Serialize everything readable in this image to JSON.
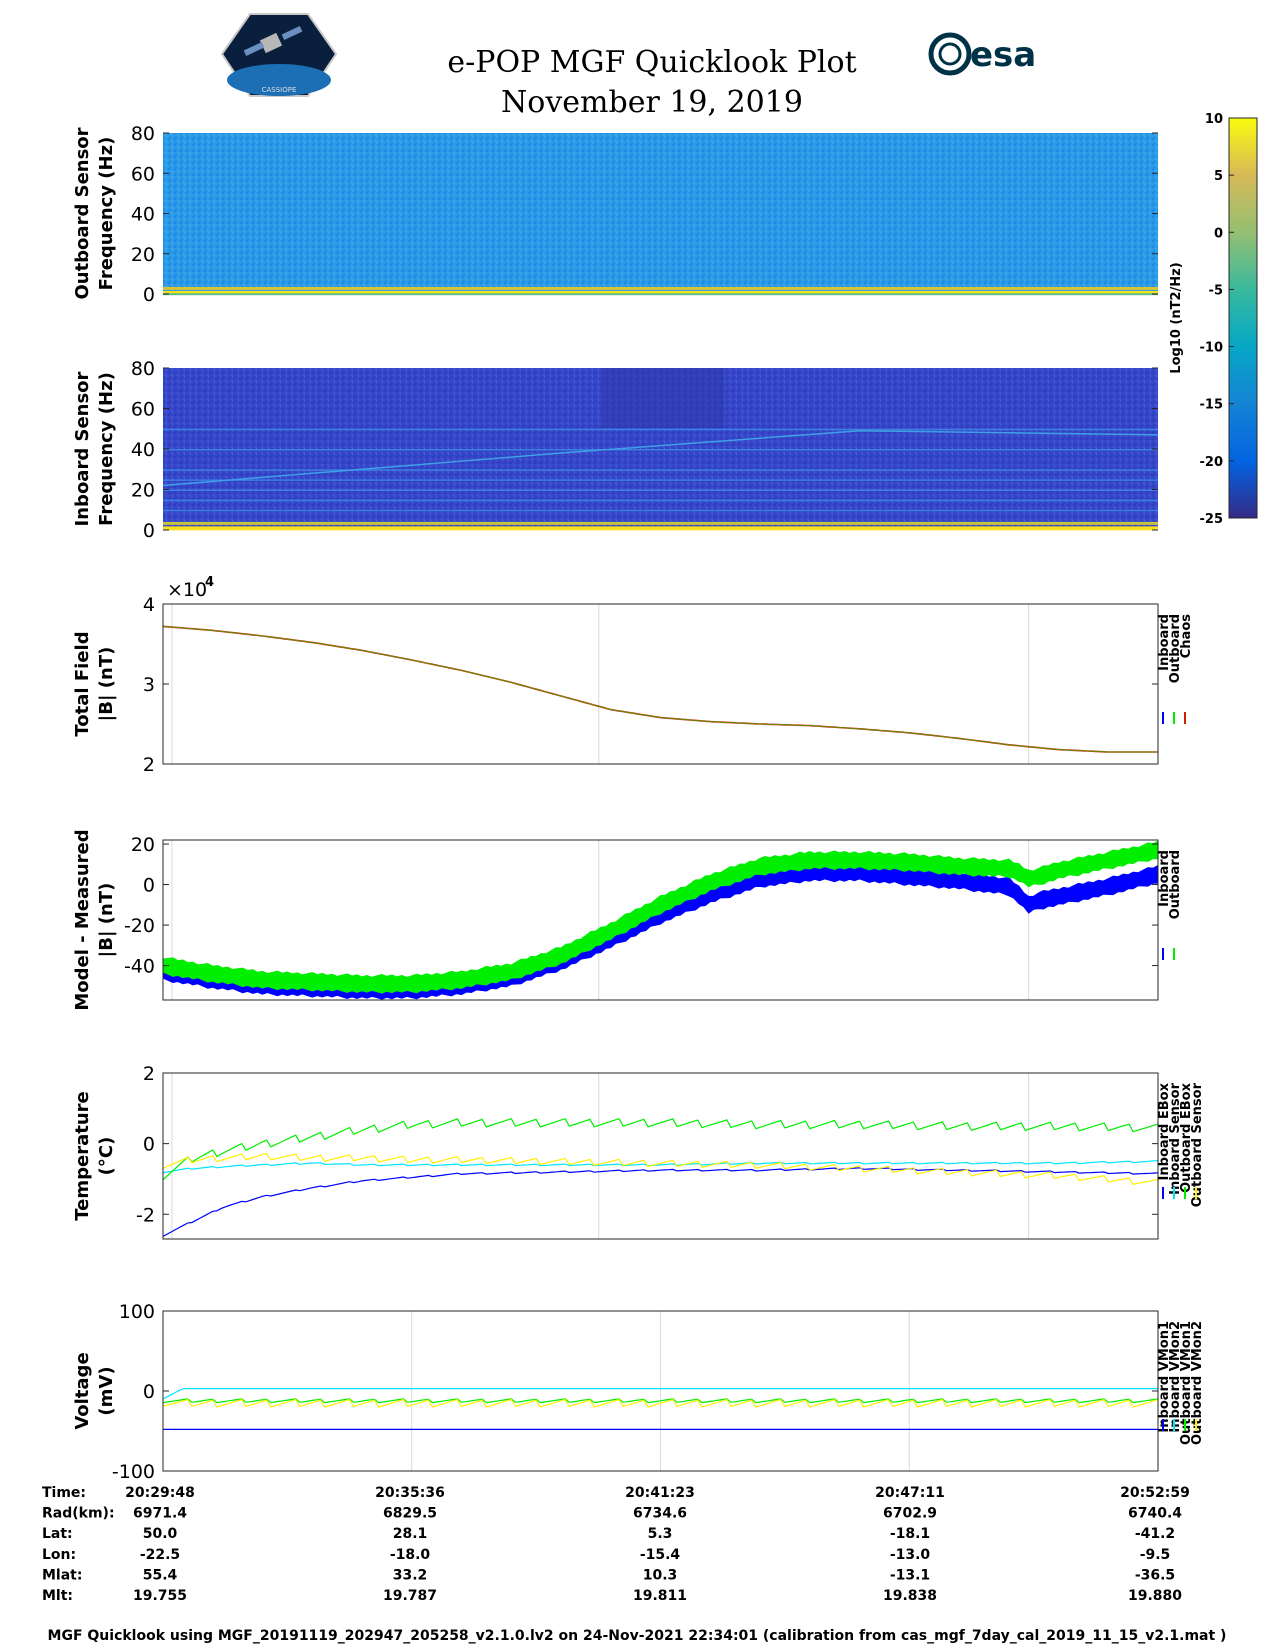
{
  "header": {
    "title": "e-POP MGF Quicklook Plot",
    "date": "November 19, 2019",
    "logo_left_text": "CASSIOPE",
    "logo_right_text": "esa"
  },
  "colors": {
    "inboard": "#0000ff",
    "outboard": "#00ee00",
    "chaos": "#cc2200",
    "cyan": "#00e5ff",
    "yellow": "#ffee00"
  },
  "chart_data": [
    {
      "type": "heatmap",
      "name": "outboard-spectrogram",
      "ylabel": [
        "Outboard Sensor",
        "Frequency (Hz)"
      ],
      "ylim": [
        0,
        80
      ],
      "yticks": [
        "80",
        "60",
        "40",
        "20",
        "0"
      ],
      "dominant_level": -14,
      "colorbar": {
        "label": "Log10 (nT2/Hz)",
        "ticks": [
          "10",
          "5",
          "0",
          "-5",
          "-10",
          "-15",
          "-20",
          "-25"
        ],
        "range": [
          -25,
          10
        ]
      }
    },
    {
      "type": "heatmap",
      "name": "inboard-spectrogram",
      "ylabel": [
        "Inboard Sensor",
        "Frequency (Hz)"
      ],
      "ylim": [
        0,
        80
      ],
      "yticks": [
        "80",
        "60",
        "40",
        "20",
        "0"
      ],
      "dominant_level": -20
    },
    {
      "type": "line",
      "name": "total-field",
      "ylabel": [
        "Total Field",
        "|B| (nT)"
      ],
      "ylim": [
        2,
        4
      ],
      "yticks": [
        "4",
        "3",
        "2"
      ],
      "exponent": "×10",
      "exponent_power": "4",
      "legend": [
        "Inboard",
        "Outboard",
        "Chaos"
      ],
      "x": [
        0,
        0.05,
        0.1,
        0.15,
        0.2,
        0.25,
        0.3,
        0.35,
        0.4,
        0.45,
        0.5,
        0.55,
        0.6,
        0.65,
        0.7,
        0.75,
        0.8,
        0.85,
        0.9,
        0.95,
        1.0
      ],
      "series": [
        {
          "name": "Chaos",
          "values": [
            3.72,
            3.67,
            3.6,
            3.52,
            3.42,
            3.3,
            3.17,
            3.02,
            2.85,
            2.68,
            2.58,
            2.53,
            2.5,
            2.48,
            2.44,
            2.39,
            2.32,
            2.24,
            2.18,
            2.15,
            2.15
          ]
        }
      ]
    },
    {
      "type": "area",
      "name": "model-minus-measured",
      "ylabel": [
        "Model - Measured",
        "|B| (nT)"
      ],
      "ylim": [
        -57,
        22
      ],
      "yticks": [
        "20",
        "0",
        "-20",
        "-40"
      ],
      "legend": [
        "Inboard",
        "Outboard"
      ],
      "x": [
        0,
        0.05,
        0.1,
        0.15,
        0.2,
        0.25,
        0.3,
        0.35,
        0.4,
        0.45,
        0.5,
        0.55,
        0.6,
        0.65,
        0.7,
        0.75,
        0.8,
        0.85,
        0.86,
        0.87,
        0.88,
        0.9,
        0.95,
        1.0
      ],
      "series": [
        {
          "name": "Inboard",
          "values": [
            -43,
            -47,
            -50,
            -51,
            -52,
            -52,
            -50,
            -46,
            -38,
            -27,
            -15,
            -5,
            3,
            6,
            6,
            4,
            2,
            -1,
            -5,
            -10,
            -8,
            -6,
            -1,
            5
          ]
        },
        {
          "name": "Outboard",
          "values": [
            -40,
            -44,
            -47,
            -48,
            -49,
            -49,
            -47,
            -43,
            -35,
            -23,
            -10,
            1,
            9,
            12,
            12,
            11,
            9,
            8,
            6,
            3,
            4,
            7,
            12,
            17
          ]
        }
      ],
      "band_halfwidth": 4
    },
    {
      "type": "line",
      "name": "temperature",
      "ylabel": [
        "Temperature",
        "(°C)"
      ],
      "ylim": [
        -2.7,
        2
      ],
      "yticks": [
        "2",
        "0",
        "-2"
      ],
      "legend": [
        "Inboard EBox",
        "Inboard Sensor",
        "Outboard EBox",
        "Outboard Sensor"
      ],
      "x": [
        0,
        0.03,
        0.06,
        0.1,
        0.15,
        0.2,
        0.25,
        0.3,
        0.4,
        0.5,
        0.6,
        0.7,
        0.8,
        0.9,
        1.0
      ],
      "series": [
        {
          "name": "Inboard EBox",
          "values": [
            -2.6,
            -2.2,
            -1.8,
            -1.5,
            -1.25,
            -1.05,
            -0.95,
            -0.85,
            -0.8,
            -0.75,
            -0.75,
            -0.7,
            -0.75,
            -0.8,
            -0.85
          ]
        },
        {
          "name": "Inboard Sensor",
          "values": [
            -0.8,
            -0.7,
            -0.65,
            -0.6,
            -0.55,
            -0.6,
            -0.6,
            -0.6,
            -0.6,
            -0.6,
            -0.55,
            -0.55,
            -0.55,
            -0.55,
            -0.5
          ]
        },
        {
          "name": "Outboard EBox",
          "values": [
            -0.9,
            -0.4,
            -0.2,
            0.0,
            0.2,
            0.4,
            0.55,
            0.6,
            0.6,
            0.6,
            0.55,
            0.55,
            0.5,
            0.5,
            0.45
          ]
        },
        {
          "name": "Outboard Sensor",
          "values": [
            -0.6,
            -0.45,
            -0.4,
            -0.35,
            -0.4,
            -0.4,
            -0.45,
            -0.45,
            -0.5,
            -0.55,
            -0.6,
            -0.7,
            -0.8,
            -0.9,
            -1.1
          ]
        }
      ]
    },
    {
      "type": "line",
      "name": "voltage",
      "ylabel": [
        "Voltage",
        "(mV)"
      ],
      "ylim": [
        -100,
        100
      ],
      "yticks": [
        "100",
        "0",
        "-100"
      ],
      "legend": [
        "Inboard VMon1",
        "Inboard VMon2",
        "Outboard VMon1",
        "Outboard VMon2"
      ],
      "x": [
        0,
        0.02,
        0.5,
        1.0
      ],
      "series": [
        {
          "name": "Inboard VMon1",
          "values": [
            -48,
            -48,
            -48,
            -48
          ]
        },
        {
          "name": "Inboard VMon2",
          "values": [
            -10,
            3,
            3,
            3
          ]
        },
        {
          "name": "Outboard VMon1",
          "values": [
            -12,
            -12,
            -12,
            -12
          ]
        },
        {
          "name": "Outboard VMon2",
          "values": [
            -14,
            -15,
            -15,
            -15
          ]
        }
      ]
    }
  ],
  "table": {
    "row_labels": [
      "Time:",
      "Rad(km):",
      "Lat:",
      "Lon:",
      "Mlat:",
      "Mlt:"
    ],
    "columns": [
      [
        "20:29:48",
        "6971.4",
        "50.0",
        "-22.5",
        "55.4",
        "19.755"
      ],
      [
        "20:35:36",
        "6829.5",
        "28.1",
        "-18.0",
        "33.2",
        "19.787"
      ],
      [
        "20:41:23",
        "6734.6",
        "5.3",
        "-15.4",
        "10.3",
        "19.811"
      ],
      [
        "20:47:11",
        "6702.9",
        "-18.1",
        "-13.0",
        "-13.1",
        "19.838"
      ],
      [
        "20:52:59",
        "6740.4",
        "-41.2",
        "-9.5",
        "-36.5",
        "19.880"
      ]
    ]
  },
  "footer": "MGF Quicklook using MGF_20191119_202947_205258_v2.1.0.lv2 on 24-Nov-2021 22:34:01 (calibration from cas_mgf_7day_cal_2019_11_15_v2.1.mat )"
}
